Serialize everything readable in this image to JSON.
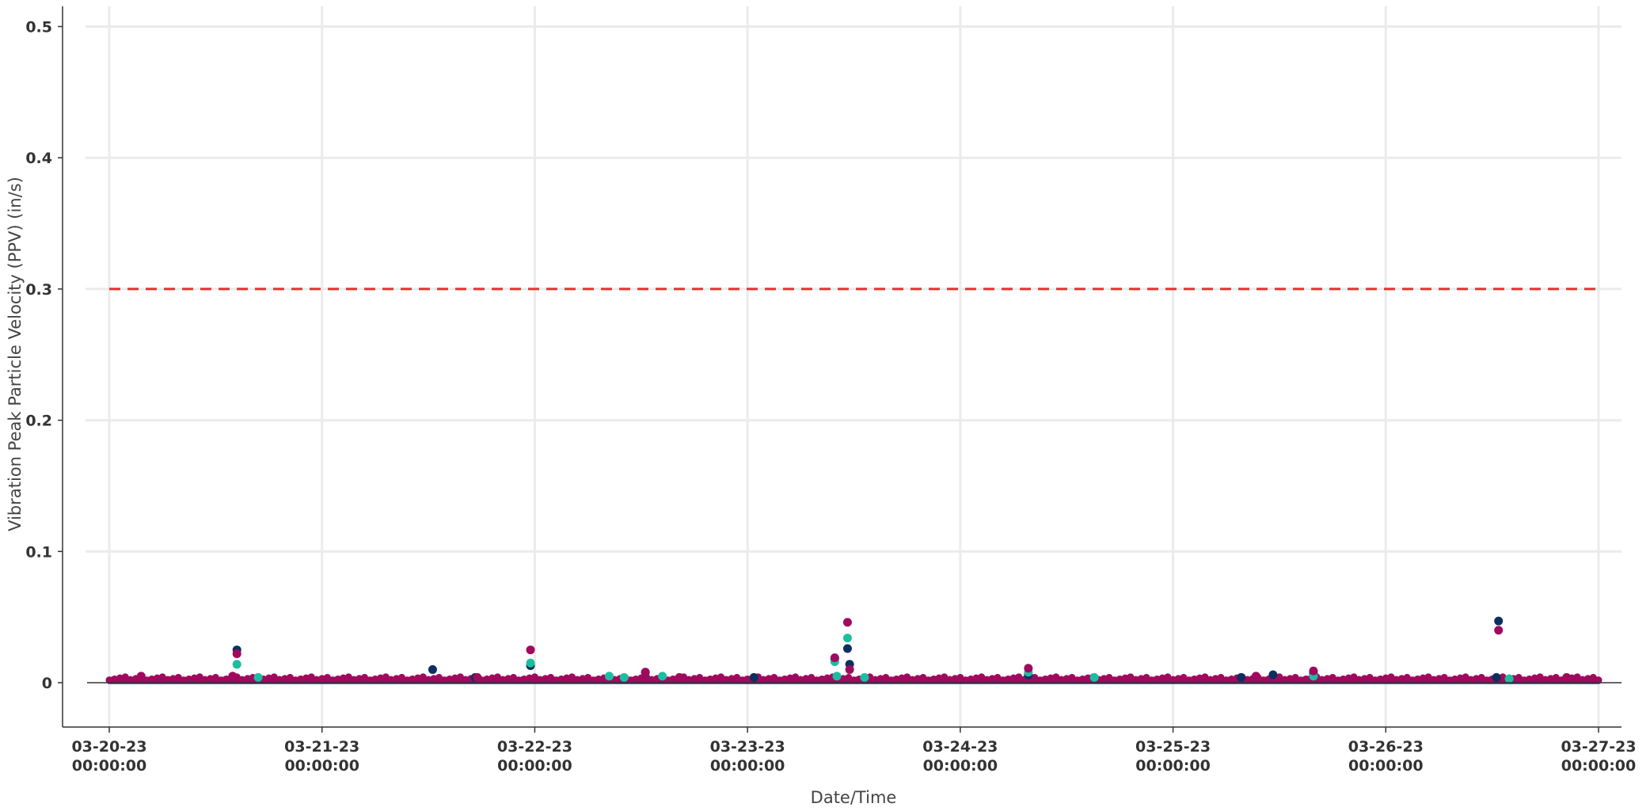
{
  "chart_data": {
    "type": "scatter",
    "xlabel": "Date/Time",
    "ylabel": "Vibration Peak Particle Velocity (PPV) (in/s)",
    "xlim": [
      "03-20-23 00:00:00",
      "03-27-23 00:00:00"
    ],
    "ylim": [
      -0.035,
      0.515
    ],
    "y_ticks": [
      {
        "value": 0,
        "label": "0"
      },
      {
        "value": 0.1,
        "label": "0.1"
      },
      {
        "value": 0.2,
        "label": "0.2"
      },
      {
        "value": 0.3,
        "label": "0.3"
      },
      {
        "value": 0.4,
        "label": "0.4"
      },
      {
        "value": 0.5,
        "label": "0.5"
      }
    ],
    "x_ticks": [
      {
        "value": 0,
        "date": "03-20-23",
        "time": "00:00:00"
      },
      {
        "value": 1,
        "date": "03-21-23",
        "time": "00:00:00"
      },
      {
        "value": 2,
        "date": "03-22-23",
        "time": "00:00:00"
      },
      {
        "value": 3,
        "date": "03-23-23",
        "time": "00:00:00"
      },
      {
        "value": 4,
        "date": "03-24-23",
        "time": "00:00:00"
      },
      {
        "value": 5,
        "date": "03-25-23",
        "time": "00:00:00"
      },
      {
        "value": 6,
        "date": "03-26-23",
        "time": "00:00:00"
      },
      {
        "value": 7,
        "date": "03-27-23",
        "time": "00:00:00"
      }
    ],
    "x_unit": "days",
    "grid": true,
    "baseline_value": 0.002,
    "threshold": {
      "value": 0.3,
      "color": "#e8302e",
      "style": "dashed"
    },
    "series": [
      {
        "color": "#0b3060",
        "points": [
          [
            0.6,
            0.025
          ],
          [
            1.52,
            0.01
          ],
          [
            1.72,
            0.004
          ],
          [
            1.98,
            0.013
          ],
          [
            2.52,
            0.008
          ],
          [
            3.03,
            0.004
          ],
          [
            3.41,
            0.018
          ],
          [
            3.47,
            0.026
          ],
          [
            3.48,
            0.014
          ],
          [
            4.32,
            0.006
          ],
          [
            5.32,
            0.004
          ],
          [
            5.47,
            0.006
          ],
          [
            5.66,
            0.007
          ],
          [
            6.53,
            0.047
          ],
          [
            6.52,
            0.004
          ]
        ]
      },
      {
        "color": "#1bbf9f",
        "points": [
          [
            0.6,
            0.014
          ],
          [
            0.7,
            0.004
          ],
          [
            1.98,
            0.015
          ],
          [
            2.35,
            0.005
          ],
          [
            2.42,
            0.004
          ],
          [
            2.6,
            0.005
          ],
          [
            3.41,
            0.016
          ],
          [
            3.47,
            0.034
          ],
          [
            3.42,
            0.005
          ],
          [
            3.55,
            0.004
          ],
          [
            4.32,
            0.008
          ],
          [
            4.63,
            0.004
          ],
          [
            5.66,
            0.005
          ],
          [
            6.58,
            0.003
          ]
        ]
      },
      {
        "color": "#a0095f",
        "points": [
          [
            0.15,
            0.005
          ],
          [
            0.58,
            0.005
          ],
          [
            0.6,
            0.022
          ],
          [
            1.73,
            0.004
          ],
          [
            1.98,
            0.025
          ],
          [
            2.52,
            0.008
          ],
          [
            2.68,
            0.004
          ],
          [
            3.41,
            0.019
          ],
          [
            3.47,
            0.046
          ],
          [
            3.48,
            0.01
          ],
          [
            4.32,
            0.011
          ],
          [
            5.39,
            0.005
          ],
          [
            5.66,
            0.009
          ],
          [
            6.53,
            0.04
          ],
          [
            6.85,
            0.004
          ]
        ]
      }
    ]
  }
}
